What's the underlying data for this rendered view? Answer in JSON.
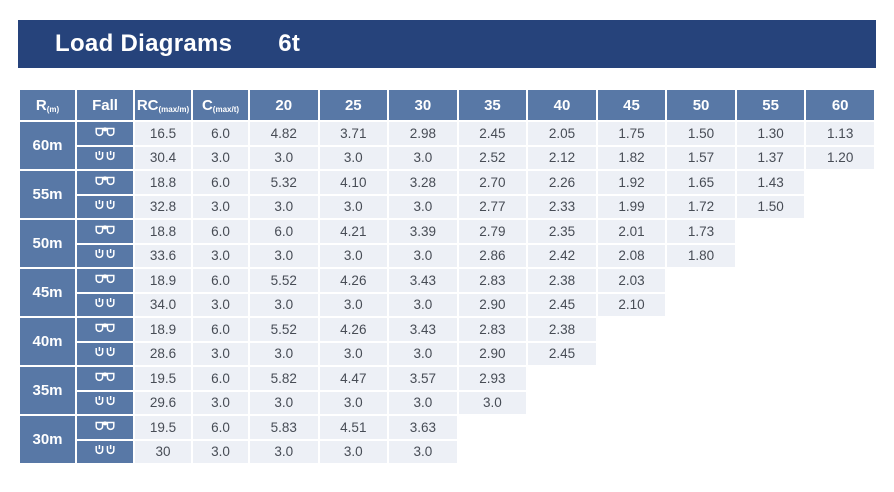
{
  "title": {
    "text": "Load Diagrams",
    "capacity": "6t"
  },
  "colors": {
    "banner": "#26437b",
    "header": "#5878a6",
    "cell": "#edf0f6",
    "body_text": "#474c55"
  },
  "icons": {
    "four_fall": "four-fall-hook-icon",
    "two_fall": "two-fall-hook-icon"
  },
  "table": {
    "columns": {
      "r": {
        "label": "R",
        "sub": "(m)"
      },
      "fall": {
        "label": "Fall"
      },
      "rc": {
        "label": "RC",
        "sub": "(max/m)"
      },
      "c": {
        "label": "C",
        "sub": "(max/t)"
      },
      "radii": [
        "20",
        "25",
        "30",
        "35",
        "40",
        "45",
        "50",
        "55",
        "60"
      ]
    },
    "groups": [
      {
        "radius": "60m",
        "rows": [
          {
            "fall": "four_fall",
            "rc": "16.5",
            "c": "6.0",
            "values": [
              "4.82",
              "3.71",
              "2.98",
              "2.45",
              "2.05",
              "1.75",
              "1.50",
              "1.30",
              "1.13"
            ]
          },
          {
            "fall": "two_fall",
            "rc": "30.4",
            "c": "3.0",
            "values": [
              "3.0",
              "3.0",
              "3.0",
              "2.52",
              "2.12",
              "1.82",
              "1.57",
              "1.37",
              "1.20"
            ]
          }
        ]
      },
      {
        "radius": "55m",
        "rows": [
          {
            "fall": "four_fall",
            "rc": "18.8",
            "c": "6.0",
            "values": [
              "5.32",
              "4.10",
              "3.28",
              "2.70",
              "2.26",
              "1.92",
              "1.65",
              "1.43",
              ""
            ]
          },
          {
            "fall": "two_fall",
            "rc": "32.8",
            "c": "3.0",
            "values": [
              "3.0",
              "3.0",
              "3.0",
              "2.77",
              "2.33",
              "1.99",
              "1.72",
              "1.50",
              ""
            ]
          }
        ]
      },
      {
        "radius": "50m",
        "rows": [
          {
            "fall": "four_fall",
            "rc": "18.8",
            "c": "6.0",
            "values": [
              "6.0",
              "4.21",
              "3.39",
              "2.79",
              "2.35",
              "2.01",
              "1.73",
              "",
              ""
            ]
          },
          {
            "fall": "two_fall",
            "rc": "33.6",
            "c": "3.0",
            "values": [
              "3.0",
              "3.0",
              "3.0",
              "2.86",
              "2.42",
              "2.08",
              "1.80",
              "",
              ""
            ]
          }
        ]
      },
      {
        "radius": "45m",
        "rows": [
          {
            "fall": "four_fall",
            "rc": "18.9",
            "c": "6.0",
            "values": [
              "5.52",
              "4.26",
              "3.43",
              "2.83",
              "2.38",
              "2.03",
              "",
              "",
              ""
            ]
          },
          {
            "fall": "two_fall",
            "rc": "34.0",
            "c": "3.0",
            "values": [
              "3.0",
              "3.0",
              "3.0",
              "2.90",
              "2.45",
              "2.10",
              "",
              "",
              ""
            ]
          }
        ]
      },
      {
        "radius": "40m",
        "rows": [
          {
            "fall": "four_fall",
            "rc": "18.9",
            "c": "6.0",
            "values": [
              "5.52",
              "4.26",
              "3.43",
              "2.83",
              "2.38",
              "",
              "",
              "",
              ""
            ]
          },
          {
            "fall": "two_fall",
            "rc": "28.6",
            "c": "3.0",
            "values": [
              "3.0",
              "3.0",
              "3.0",
              "2.90",
              "2.45",
              "",
              "",
              "",
              ""
            ]
          }
        ]
      },
      {
        "radius": "35m",
        "rows": [
          {
            "fall": "four_fall",
            "rc": "19.5",
            "c": "6.0",
            "values": [
              "5.82",
              "4.47",
              "3.57",
              "2.93",
              "",
              "",
              "",
              "",
              ""
            ]
          },
          {
            "fall": "two_fall",
            "rc": "29.6",
            "c": "3.0",
            "values": [
              "3.0",
              "3.0",
              "3.0",
              "3.0",
              "",
              "",
              "",
              "",
              ""
            ]
          }
        ]
      },
      {
        "radius": "30m",
        "rows": [
          {
            "fall": "four_fall",
            "rc": "19.5",
            "c": "6.0",
            "values": [
              "5.83",
              "4.51",
              "3.63",
              "",
              "",
              "",
              "",
              "",
              ""
            ]
          },
          {
            "fall": "two_fall",
            "rc": "30",
            "c": "3.0",
            "values": [
              "3.0",
              "3.0",
              "3.0",
              "",
              "",
              "",
              "",
              "",
              ""
            ]
          }
        ]
      }
    ]
  }
}
